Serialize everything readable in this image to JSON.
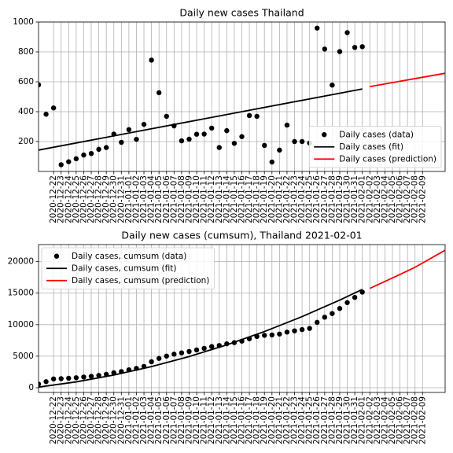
{
  "chart_data": [
    {
      "type": "line",
      "title": "Daily new cases Thailand",
      "xlim": [
        "2020-12-20",
        "2021-02-12"
      ],
      "ylim": [
        0,
        1000
      ],
      "yticks": [
        200,
        400,
        600,
        800,
        1000
      ],
      "xticks": [
        "2020-12-22",
        "2020-12-23",
        "2020-12-24",
        "2020-12-25",
        "2020-12-26",
        "2020-12-27",
        "2020-12-28",
        "2020-12-29",
        "2020-12-30",
        "2020-12-31",
        "2021-01-01",
        "2021-01-02",
        "2021-01-03",
        "2021-01-04",
        "2021-01-05",
        "2021-01-06",
        "2021-01-07",
        "2021-01-08",
        "2021-01-09",
        "2021-01-10",
        "2021-01-11",
        "2021-01-12",
        "2021-01-13",
        "2021-01-14",
        "2021-01-15",
        "2021-01-16",
        "2021-01-17",
        "2021-01-18",
        "2021-01-19",
        "2021-01-20",
        "2021-01-21",
        "2021-01-22",
        "2021-01-23",
        "2021-01-24",
        "2021-01-25",
        "2021-01-26",
        "2021-01-27",
        "2021-01-28",
        "2021-01-29",
        "2021-01-30",
        "2021-01-31",
        "2021-02-01",
        "2021-02-02",
        "2021-02-03",
        "2021-02-04",
        "2021-02-05",
        "2021-02-06",
        "2021-02-07",
        "2021-02-08",
        "2021-02-09"
      ],
      "grid": true,
      "legend": "lower right",
      "series": [
        {
          "name": "Daily cases (data)",
          "color": "#000000",
          "marker": true,
          "x": [
            "2020-12-20",
            "2020-12-21",
            "2020-12-22",
            "2020-12-23",
            "2020-12-24",
            "2020-12-25",
            "2020-12-26",
            "2020-12-27",
            "2020-12-28",
            "2020-12-29",
            "2020-12-30",
            "2020-12-31",
            "2021-01-01",
            "2021-01-02",
            "2021-01-03",
            "2021-01-04",
            "2021-01-05",
            "2021-01-06",
            "2021-01-07",
            "2021-01-08",
            "2021-01-09",
            "2021-01-10",
            "2021-01-11",
            "2021-01-12",
            "2021-01-13",
            "2021-01-14",
            "2021-01-15",
            "2021-01-16",
            "2021-01-17",
            "2021-01-18",
            "2021-01-19",
            "2021-01-20",
            "2021-01-21",
            "2021-01-22",
            "2021-01-23",
            "2021-01-24",
            "2021-01-25",
            "2021-01-26",
            "2021-01-27",
            "2021-01-28",
            "2021-01-29",
            "2021-01-30",
            "2021-01-31",
            "2021-02-01"
          ],
          "values": [
            580,
            383,
            425,
            45,
            65,
            85,
            110,
            120,
            148,
            160,
            250,
            195,
            280,
            215,
            315,
            745,
            527,
            369,
            305,
            205,
            216,
            249,
            250,
            290,
            160,
            273,
            188,
            233,
            374,
            369,
            174,
            63,
            143,
            310,
            200,
            200,
            190,
            959,
            819,
            578,
            802,
            929,
            830,
            835
          ]
        },
        {
          "name": "Daily cases (fit)",
          "color": "#000000",
          "marker": false,
          "x": [
            "2020-12-20",
            "2021-02-01"
          ],
          "values": [
            143,
            552
          ]
        },
        {
          "name": "Daily cases (prediction)",
          "color": "#ff0000",
          "marker": false,
          "x": [
            "2021-02-02",
            "2021-02-12"
          ],
          "values": [
            568,
            657
          ]
        }
      ]
    },
    {
      "type": "line",
      "title": "Daily new cases (cumsum), Thailand 2021-02-01",
      "xlim": [
        "2020-12-20",
        "2021-02-12"
      ],
      "ylim": [
        -750,
        22700
      ],
      "yticks": [
        0,
        5000,
        10000,
        15000,
        20000
      ],
      "xticks": [
        "2020-12-22",
        "2020-12-23",
        "2020-12-24",
        "2020-12-25",
        "2020-12-26",
        "2020-12-27",
        "2020-12-28",
        "2020-12-29",
        "2020-12-30",
        "2020-12-31",
        "2021-01-01",
        "2021-01-02",
        "2021-01-03",
        "2021-01-04",
        "2021-01-05",
        "2021-01-06",
        "2021-01-07",
        "2021-01-08",
        "2021-01-09",
        "2021-01-10",
        "2021-01-11",
        "2021-01-12",
        "2021-01-13",
        "2021-01-14",
        "2021-01-15",
        "2021-01-16",
        "2021-01-17",
        "2021-01-18",
        "2021-01-19",
        "2021-01-20",
        "2021-01-21",
        "2021-01-22",
        "2021-01-23",
        "2021-01-24",
        "2021-01-25",
        "2021-01-26",
        "2021-01-27",
        "2021-01-28",
        "2021-01-29",
        "2021-01-30",
        "2021-01-31",
        "2021-02-01",
        "2021-02-02",
        "2021-02-03",
        "2021-02-04",
        "2021-02-05",
        "2021-02-06",
        "2021-02-07",
        "2021-02-08",
        "2021-02-09"
      ],
      "grid": true,
      "legend": "upper left",
      "series": [
        {
          "name": "Daily cases, cumsum (data)",
          "color": "#000000",
          "marker": true,
          "x": [
            "2020-12-20",
            "2020-12-21",
            "2020-12-22",
            "2020-12-23",
            "2020-12-24",
            "2020-12-25",
            "2020-12-26",
            "2020-12-27",
            "2020-12-28",
            "2020-12-29",
            "2020-12-30",
            "2020-12-31",
            "2021-01-01",
            "2021-01-02",
            "2021-01-03",
            "2021-01-04",
            "2021-01-05",
            "2021-01-06",
            "2021-01-07",
            "2021-01-08",
            "2021-01-09",
            "2021-01-10",
            "2021-01-11",
            "2021-01-12",
            "2021-01-13",
            "2021-01-14",
            "2021-01-15",
            "2021-01-16",
            "2021-01-17",
            "2021-01-18",
            "2021-01-19",
            "2021-01-20",
            "2021-01-21",
            "2021-01-22",
            "2021-01-23",
            "2021-01-24",
            "2021-01-25",
            "2021-01-26",
            "2021-01-27",
            "2021-01-28",
            "2021-01-29",
            "2021-01-30",
            "2021-01-31",
            "2021-02-01"
          ],
          "values": [
            580,
            963,
            1388,
            1433,
            1498,
            1583,
            1693,
            1813,
            1961,
            2121,
            2371,
            2566,
            2846,
            3061,
            3376,
            4121,
            4648,
            5017,
            5322,
            5527,
            5743,
            5992,
            6242,
            6532,
            6692,
            6965,
            7153,
            7386,
            7760,
            8129,
            8303,
            8366,
            8509,
            8819,
            9019,
            9219,
            9409,
            10368,
            11187,
            11765,
            12567,
            13496,
            14326,
            15161
          ]
        },
        {
          "name": "Daily cases, cumsum (fit)",
          "color": "#000000",
          "marker": false,
          "x": [
            "2020-12-20",
            "2020-12-25",
            "2020-12-30",
            "2021-01-04",
            "2021-01-09",
            "2021-01-14",
            "2021-01-19",
            "2021-01-24",
            "2021-01-29",
            "2021-02-01"
          ],
          "values": [
            100,
            926,
            2010,
            3350,
            4946,
            6798,
            8908,
            11274,
            13896,
            15593
          ]
        },
        {
          "name": "Daily cases, cumsum (prediction)",
          "color": "#ff0000",
          "marker": false,
          "x": [
            "2021-02-02",
            "2021-02-05",
            "2021-02-08",
            "2021-02-12"
          ],
          "values": [
            15750,
            17400,
            19100,
            21800
          ]
        }
      ]
    }
  ]
}
